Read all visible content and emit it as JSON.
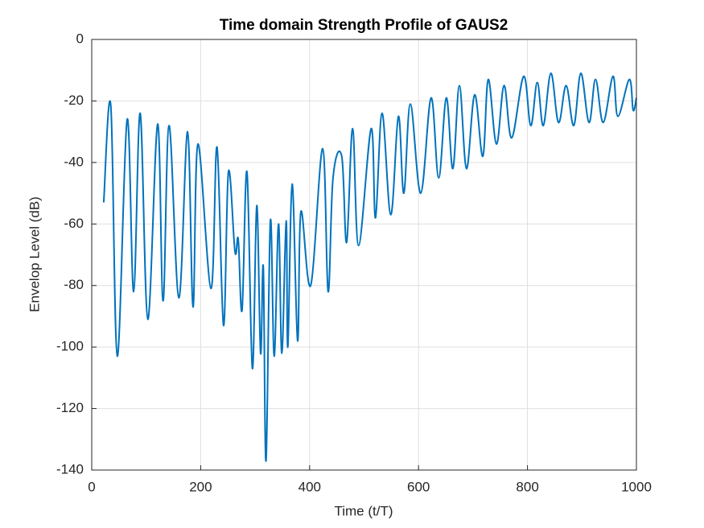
{
  "chart_data": {
    "type": "line",
    "title": "Time domain Strength Profile of GAUS2",
    "x_label": "Time (t/T)",
    "y_label": "Envelop Level (dB)",
    "xlim": [
      0,
      1000
    ],
    "ylim": [
      -140,
      0
    ],
    "xticks": [
      0,
      200,
      400,
      600,
      800,
      1000
    ],
    "yticks": [
      0,
      -20,
      -40,
      -60,
      -80,
      -100,
      -120,
      -140
    ],
    "grid": true,
    "series": [
      {
        "name": "GAUS2",
        "color": "#0072bd",
        "x": [
          22,
          35,
          47,
          65,
          77,
          89,
          103,
          121,
          131,
          142,
          160,
          176,
          186,
          195,
          219,
          230,
          242,
          251,
          263,
          269,
          276,
          285,
          295,
          303,
          310,
          315,
          320,
          328,
          335,
          343,
          349,
          357,
          360,
          368,
          378,
          384,
          402,
          424,
          434,
          443,
          459,
          468,
          479,
          490,
          513,
          521,
          533,
          549,
          563,
          573,
          585,
          604,
          623,
          637,
          651,
          663,
          675,
          688,
          703,
          718,
          728,
          743,
          757,
          771,
          793,
          806,
          818,
          829,
          843,
          857,
          871,
          885,
          898,
          913,
          925,
          939,
          957,
          966,
          987,
          994,
          1000
        ],
        "values": [
          -53,
          -21.5,
          -103,
          -26,
          -82,
          -24,
          -91,
          -27.5,
          -85,
          -28,
          -84,
          -30,
          -87,
          -34,
          -81,
          -35,
          -93,
          -43,
          -69,
          -65,
          -88,
          -43,
          -107,
          -54,
          -102,
          -74,
          -137,
          -59,
          -103,
          -60,
          -102,
          -59,
          -100,
          -47,
          -98,
          -56,
          -80,
          -35.5,
          -82,
          -45,
          -38,
          -66,
          -29,
          -67,
          -29,
          -58,
          -24,
          -57,
          -25,
          -50,
          -21,
          -50,
          -19,
          -45,
          -19,
          -42,
          -15,
          -42,
          -18,
          -38,
          -13,
          -34,
          -15,
          -32,
          -12,
          -28,
          -14,
          -28,
          -11,
          -27,
          -15,
          -28,
          -11,
          -27,
          -13,
          -27,
          -12,
          -25,
          -13,
          -23,
          -19
        ]
      }
    ]
  }
}
